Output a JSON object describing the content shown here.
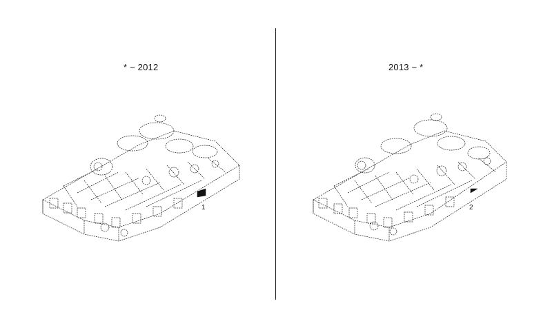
{
  "panels": [
    {
      "period_label": "* ~ 2012",
      "callout_number": "1"
    },
    {
      "period_label": "2013 ~ *",
      "callout_number": "2"
    }
  ],
  "colors": {
    "line": "#1a1a1a",
    "background": "#ffffff"
  }
}
